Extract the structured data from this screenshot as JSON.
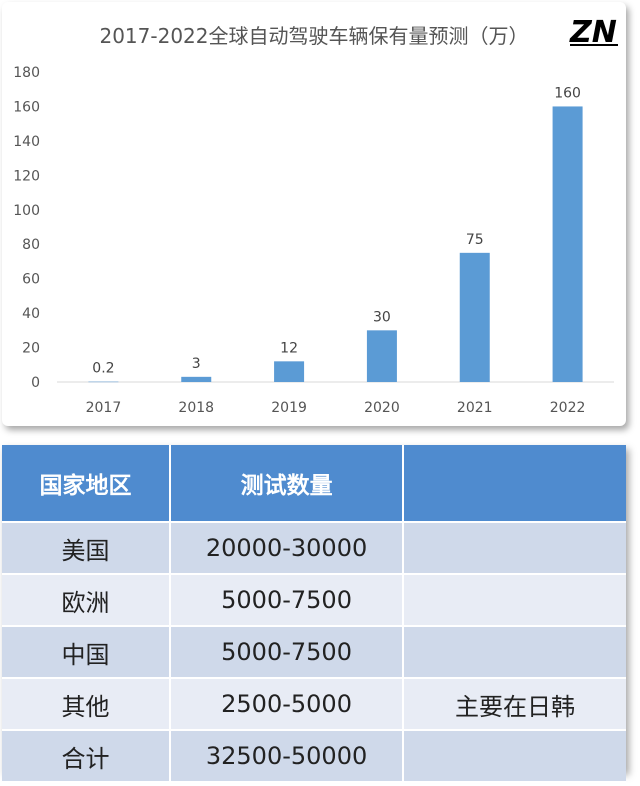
{
  "logo_text": "ZN",
  "colors": {
    "bar": "#5b9bd5",
    "header": "#4f8bcf",
    "row_dark": "#cfd9ea",
    "row_light": "#e8ecf5"
  },
  "chart_data": {
    "type": "bar",
    "title": "2017-2022全球自动驾驶车辆保有量预测（万）",
    "categories": [
      "2017",
      "2018",
      "2019",
      "2020",
      "2021",
      "2022"
    ],
    "values": [
      0.2,
      3,
      12,
      30,
      75,
      160
    ],
    "data_labels": [
      "0.2",
      "3",
      "12",
      "30",
      "75",
      "160"
    ],
    "yticks": [
      "0",
      "20",
      "40",
      "60",
      "80",
      "100",
      "120",
      "140",
      "160",
      "180"
    ],
    "ylim": [
      0,
      180
    ],
    "grid": false,
    "xlabel": "",
    "ylabel": ""
  },
  "table": {
    "headers": [
      "国家地区",
      "测试数量",
      ""
    ],
    "rows": [
      [
        "美国",
        "20000-30000",
        ""
      ],
      [
        "欧洲",
        "5000-7500",
        ""
      ],
      [
        "中国",
        "5000-7500",
        ""
      ],
      [
        "其他",
        "2500-5000",
        "主要在日韩"
      ],
      [
        "合计",
        "32500-50000",
        ""
      ]
    ]
  }
}
